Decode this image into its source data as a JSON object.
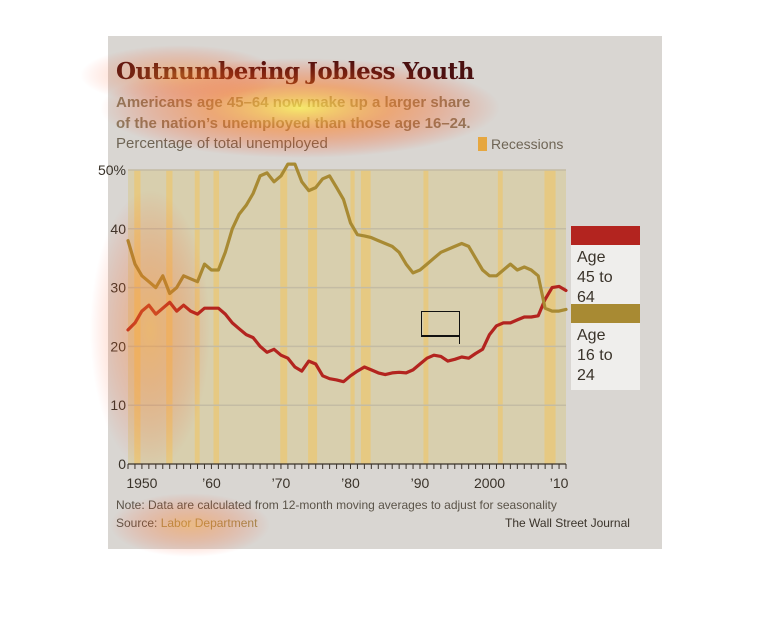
{
  "colors": {
    "card_bg": "#d9d6d2",
    "plot_bg": "#d8cfae",
    "recession": "#e6c982",
    "line_45_64": "#b3241f",
    "line_16_24": "#a88a33"
  },
  "chart_data": {
    "type": "line",
    "title": "Outnumbering Jobless Youth",
    "subtitle": [
      "Americans age 45–64 now make up a larger share",
      "of the nation’s unemployed than those age 16–24."
    ],
    "ylabel": "Percentage of total unemployed",
    "xlim": [
      1948,
      2011
    ],
    "ylim": [
      0,
      50
    ],
    "y_ticks": [
      0,
      10,
      20,
      30,
      40,
      50
    ],
    "y_tick_labels": [
      "0",
      "10",
      "20",
      "30",
      "40",
      "50%"
    ],
    "x_ticks": [
      1950,
      1960,
      1970,
      1980,
      1990,
      2000,
      2010
    ],
    "x_tick_labels": [
      "1950",
      "’60",
      "’70",
      "’80",
      "’90",
      "2000",
      "’10"
    ],
    "grid": true,
    "recessions_label": "Recessions",
    "recessions": [
      [
        1948.9,
        1949.8
      ],
      [
        1953.5,
        1954.4
      ],
      [
        1957.6,
        1958.3
      ],
      [
        1960.3,
        1961.1
      ],
      [
        1969.9,
        1970.9
      ],
      [
        1973.9,
        1975.2
      ],
      [
        1980.0,
        1980.6
      ],
      [
        1981.5,
        1982.9
      ],
      [
        1990.5,
        1991.2
      ],
      [
        2001.2,
        2001.9
      ],
      [
        2007.9,
        2009.5
      ]
    ],
    "series": [
      {
        "name": "Age 45 to 64",
        "color": "#b3241f",
        "x": [
          1948,
          1949,
          1950,
          1951,
          1952,
          1953,
          1954,
          1955,
          1956,
          1957,
          1958,
          1959,
          1960,
          1961,
          1962,
          1963,
          1964,
          1965,
          1966,
          1967,
          1968,
          1969,
          1970,
          1971,
          1972,
          1973,
          1974,
          1975,
          1976,
          1977,
          1978,
          1979,
          1980,
          1981,
          1982,
          1983,
          1984,
          1985,
          1986,
          1987,
          1988,
          1989,
          1990,
          1991,
          1992,
          1993,
          1994,
          1995,
          1996,
          1997,
          1998,
          1999,
          2000,
          2001,
          2002,
          2003,
          2004,
          2005,
          2006,
          2007,
          2008,
          2009,
          2010,
          2011
        ],
        "values": [
          22.8,
          24,
          26,
          27,
          25.5,
          26.5,
          27.5,
          26,
          27,
          26,
          25.5,
          26.5,
          26.5,
          26.5,
          25.5,
          24,
          23,
          22,
          21.5,
          20,
          19,
          19.5,
          18.5,
          18,
          16.5,
          15.8,
          17.5,
          17,
          15,
          14.5,
          14.3,
          14,
          15,
          15.8,
          16.5,
          16,
          15.5,
          15.2,
          15.5,
          15.6,
          15.5,
          16,
          17,
          18,
          18.5,
          18.3,
          17.5,
          17.8,
          18.2,
          18,
          18.8,
          19.5,
          22,
          23.5,
          24,
          24,
          24.5,
          25,
          25,
          25.2,
          28,
          30,
          30.2,
          29.5
        ]
      },
      {
        "name": "Age 16 to 24",
        "color": "#a88a33",
        "x": [
          1948,
          1949,
          1950,
          1951,
          1952,
          1953,
          1954,
          1955,
          1956,
          1957,
          1958,
          1959,
          1960,
          1961,
          1962,
          1963,
          1964,
          1965,
          1966,
          1967,
          1968,
          1969,
          1970,
          1971,
          1972,
          1973,
          1974,
          1975,
          1976,
          1977,
          1978,
          1979,
          1980,
          1981,
          1982,
          1983,
          1984,
          1985,
          1986,
          1987,
          1988,
          1989,
          1990,
          1991,
          1992,
          1993,
          1994,
          1995,
          1996,
          1997,
          1998,
          1999,
          2000,
          2001,
          2002,
          2003,
          2004,
          2005,
          2006,
          2007,
          2008,
          2009,
          2010,
          2011
        ],
        "values": [
          38,
          34,
          32,
          31,
          30,
          32,
          29,
          30,
          32,
          31.5,
          31,
          34,
          33,
          33,
          36,
          40,
          42.5,
          44,
          46,
          49,
          49.5,
          48,
          49,
          51,
          51,
          48,
          46.5,
          47,
          48.5,
          49,
          47,
          45,
          41,
          39,
          38.8,
          38.5,
          38,
          37.5,
          37,
          36,
          34,
          32.5,
          33,
          34,
          35,
          36,
          36.5,
          37,
          37.5,
          37,
          35,
          33,
          32,
          32,
          33,
          34,
          33,
          33.5,
          33,
          32,
          26.5,
          26,
          26,
          26.3
        ]
      }
    ]
  },
  "legend": {
    "item_45": {
      "line1": "Age",
      "line2": "45 to 64",
      "color": "#b3241f"
    },
    "item_16": {
      "line1": "Age",
      "line2": "16 to 24",
      "color": "#a88a33"
    }
  },
  "footer": {
    "note": "Note: Data are calculated from 12-month moving averages to adjust for seasonality",
    "source_label": "Source: ",
    "source_value": "Labor Department",
    "credit": "The Wall Street Journal"
  }
}
